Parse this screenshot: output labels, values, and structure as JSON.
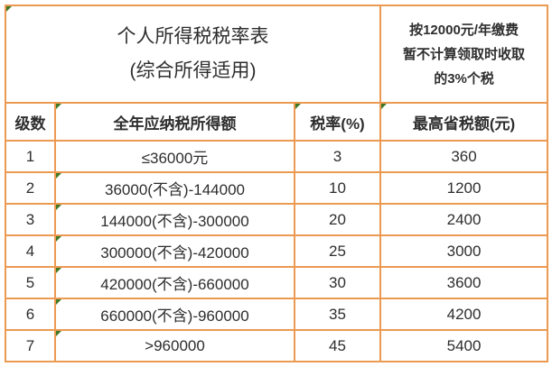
{
  "colors": {
    "table_border": "#EC9A52",
    "flag_indicator": "#3E7A26",
    "text": "#2E2E2E"
  },
  "header": {
    "title_line1": "个人所得税税率表",
    "title_line2": "(综合所得适用)",
    "note_line1": "按12000元/年缴费",
    "note_line2": "暂不计算领取时收取",
    "note_line3": "的3%个税"
  },
  "table": {
    "columns": [
      "级数",
      "全年应纳税所得额",
      "税率(%)",
      "最高省税额(元)"
    ],
    "rows": [
      [
        "1",
        "≤36000元",
        "3",
        "360"
      ],
      [
        "2",
        "36000(不含)-144000",
        "10",
        "1200"
      ],
      [
        "3",
        "144000(不含)-300000",
        "20",
        "2400"
      ],
      [
        "4",
        "300000(不含)-420000",
        "25",
        "3000"
      ],
      [
        "5",
        "420000(不含)-660000",
        "30",
        "3600"
      ],
      [
        "6",
        "660000(不含)-960000",
        "35",
        "4200"
      ],
      [
        "7",
        ">960000",
        "45",
        "5400"
      ]
    ]
  }
}
